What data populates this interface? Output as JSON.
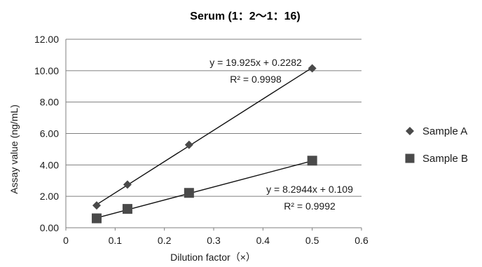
{
  "chart_data": {
    "type": "scatter",
    "title": "Serum (1：2〜1：16)",
    "xlabel": "Dilution factor（×）",
    "ylabel": "Assay value (ng/mL)",
    "xlim": [
      0,
      0.6
    ],
    "ylim": [
      0,
      12
    ],
    "x_ticks": [
      "0",
      "0.1",
      "0.2",
      "0.3",
      "0.4",
      "0.5",
      "0.6"
    ],
    "y_ticks": [
      "0.00",
      "2.00",
      "4.00",
      "6.00",
      "8.00",
      "10.00",
      "12.00"
    ],
    "grid": "horizontal",
    "legend_position": "right",
    "series": [
      {
        "name": "Sample A",
        "marker": "diamond",
        "color": "#4a4a4a",
        "x": [
          0.0625,
          0.125,
          0.25,
          0.5
        ],
        "y": [
          1.42,
          2.75,
          5.28,
          10.15
        ],
        "trendline": {
          "slope": 19.925,
          "intercept": 0.2282
        },
        "equation": "y = 19.925x + 0.2282",
        "r2": "R² = 0.9998"
      },
      {
        "name": "Sample B",
        "marker": "square",
        "color": "#4a4a4a",
        "x": [
          0.0625,
          0.125,
          0.25,
          0.5
        ],
        "y": [
          0.6,
          1.2,
          2.22,
          4.27
        ],
        "trendline": {
          "slope": 8.2944,
          "intercept": 0.109
        },
        "equation": "y = 8.2944x + 0.109",
        "r2": "R² = 0.9992"
      }
    ]
  }
}
